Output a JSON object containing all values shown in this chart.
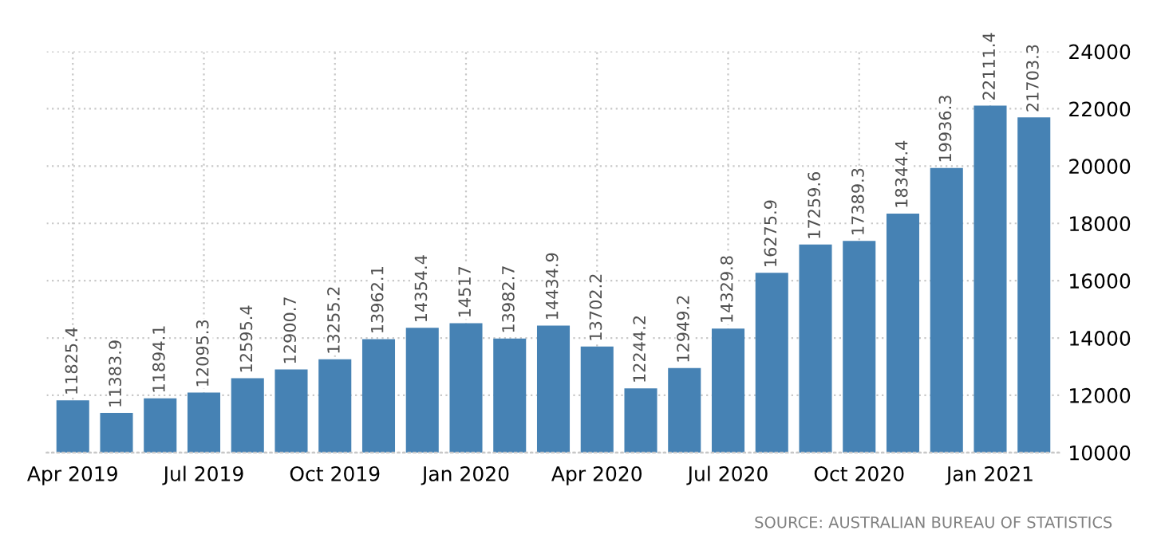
{
  "chart_data": {
    "type": "bar",
    "categories": [
      "Apr 2019",
      null,
      null,
      "Jul 2019",
      null,
      null,
      "Oct 2019",
      null,
      null,
      "Jan 2020",
      null,
      null,
      "Apr 2020",
      null,
      null,
      "Jul 2020",
      null,
      null,
      "Oct 2020",
      null,
      null,
      "Jan 2021",
      null
    ],
    "values": [
      11825.4,
      11383.9,
      11894.1,
      12095.3,
      12595.4,
      12900.7,
      13255.2,
      13962.1,
      14354.4,
      14517,
      13982.7,
      14434.9,
      13702.2,
      12244.2,
      12949.2,
      14329.8,
      16275.9,
      17259.6,
      17389.3,
      18344.4,
      19936.3,
      22111.4,
      21703.3
    ],
    "color": "#4682b4",
    "ylim": [
      10000,
      24000
    ],
    "yticks": [
      10000,
      12000,
      14000,
      16000,
      18000,
      20000,
      22000,
      24000
    ],
    "grid": true,
    "data_labels": true,
    "annotations": [
      "SOURCE: AUSTRALIAN BUREAU OF STATISTICS"
    ]
  }
}
